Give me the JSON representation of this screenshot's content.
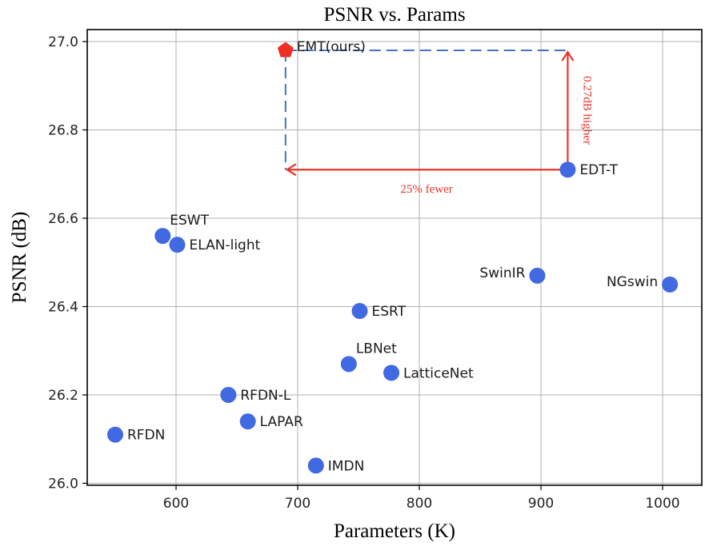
{
  "chart_data": {
    "type": "scatter",
    "title": "PSNR vs. Params",
    "xlabel": "Parameters (K)",
    "ylabel": "PSNR (dB)",
    "xlim": [
      528,
      1031
    ],
    "ylim": [
      25.995,
      27.025
    ],
    "xticks": [
      600,
      700,
      800,
      900,
      1000
    ],
    "xtick_labels": [
      "600",
      "700",
      "800",
      "900",
      "1000"
    ],
    "yticks": [
      26.0,
      26.2,
      26.4,
      26.6,
      26.8,
      27.0
    ],
    "ytick_labels": [
      "26.0",
      "26.2",
      "26.4",
      "26.6",
      "26.8",
      "27.0"
    ],
    "grid": true,
    "colors": {
      "points": "#4169e1",
      "ours": "#ee3024",
      "annotation": "#e8342a",
      "dashed": "#4472c4"
    },
    "points": [
      {
        "name": "ESWT",
        "x": 589,
        "y": 26.56,
        "label_pos": "above-right"
      },
      {
        "name": "ELAN-light",
        "x": 601,
        "y": 26.54,
        "label_pos": "right"
      },
      {
        "name": "SwinIR",
        "x": 897,
        "y": 26.47,
        "label_pos": "left"
      },
      {
        "name": "NGswin",
        "x": 1006,
        "y": 26.45,
        "label_pos": "left"
      },
      {
        "name": "ESRT",
        "x": 751,
        "y": 26.39,
        "label_pos": "right"
      },
      {
        "name": "LBNet",
        "x": 742,
        "y": 26.27,
        "label_pos": "above-right"
      },
      {
        "name": "LatticeNet",
        "x": 777,
        "y": 26.25,
        "label_pos": "right"
      },
      {
        "name": "RFDN-L",
        "x": 643,
        "y": 26.2,
        "label_pos": "right"
      },
      {
        "name": "LAPAR",
        "x": 659,
        "y": 26.14,
        "label_pos": "right"
      },
      {
        "name": "RFDN",
        "x": 550,
        "y": 26.11,
        "label_pos": "right"
      },
      {
        "name": "IMDN",
        "x": 715,
        "y": 26.04,
        "label_pos": "right"
      },
      {
        "name": "EDT-T",
        "x": 922,
        "y": 26.71,
        "label_pos": "right"
      }
    ],
    "highlight": {
      "name": "EMT(ours)",
      "x": 690,
      "y": 26.98,
      "marker": "pentagon"
    },
    "annotations": [
      {
        "text": "25% fewer",
        "type": "horizontal-arrow",
        "from": {
          "x": 922,
          "y": 26.71
        },
        "to": {
          "x": 690,
          "y": 26.71
        }
      },
      {
        "text": "0.27dB higher",
        "type": "vertical-arrow",
        "from": {
          "x": 922,
          "y": 26.71
        },
        "to": {
          "x": 922,
          "y": 26.98
        }
      }
    ]
  }
}
